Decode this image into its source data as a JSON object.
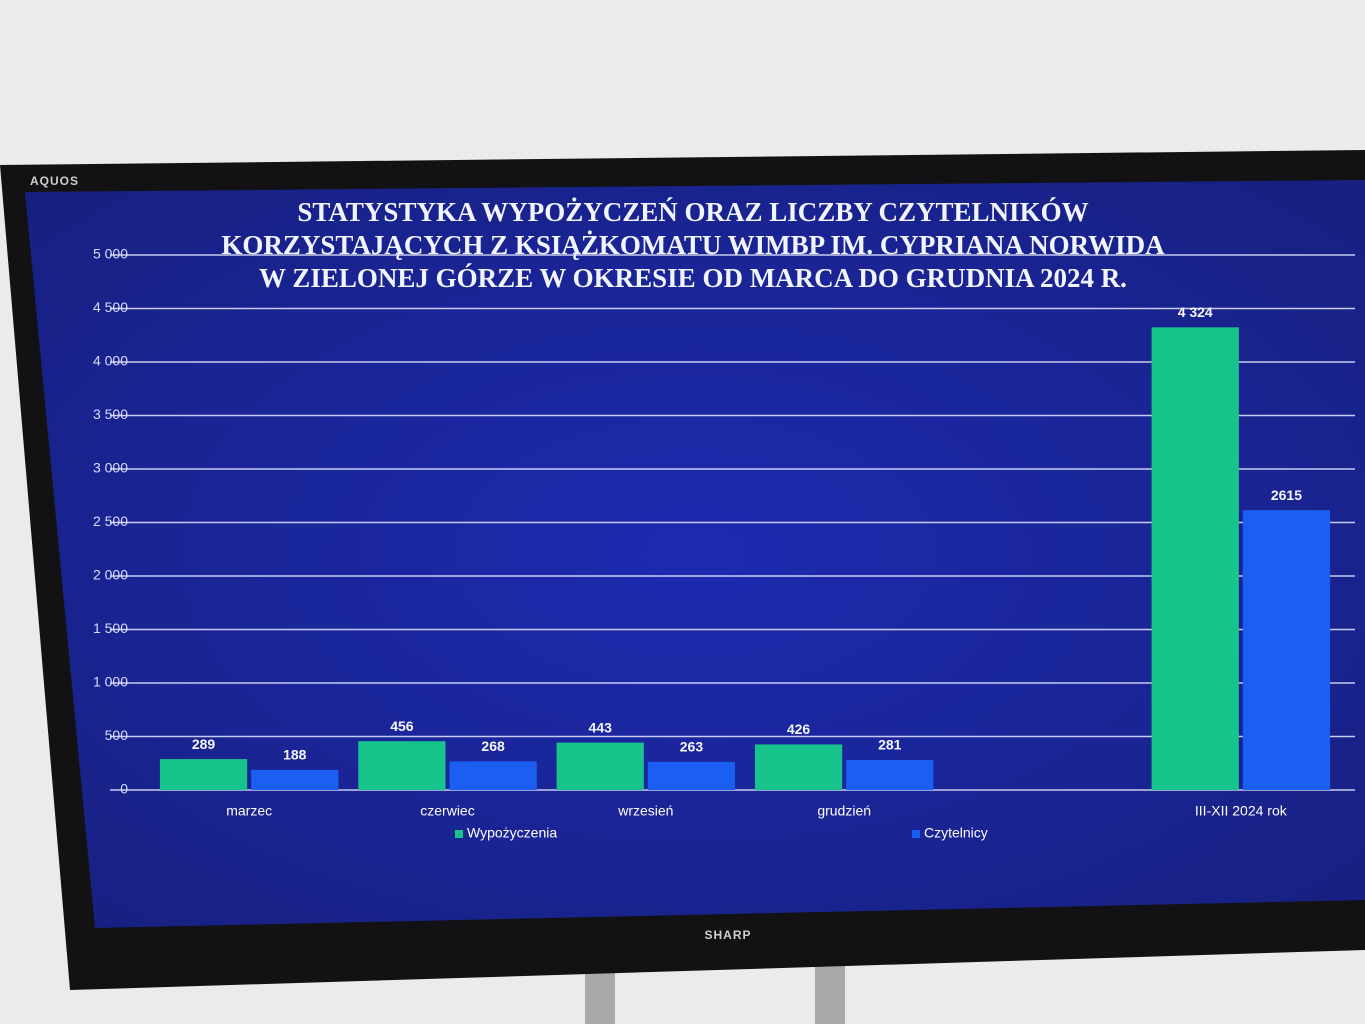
{
  "device": {
    "brand_top": "AQUOS",
    "brand_bottom": "SHARP"
  },
  "chart_data": {
    "type": "bar",
    "title": [
      "STATYSTYKA WYPOŻYCZEŃ ORAZ LICZBY CZYTELNIKÓW",
      "KORZYSTAJĄCYCH Z KSIĄŻKOMATU WIMBP IM. CYPRIANA NORWIDA",
      "W ZIELONEJ GÓRZE W OKRESIE OD MARCA DO GRUDNIA 2024 R."
    ],
    "categories": [
      "marzec",
      "czerwiec",
      "wrzesień",
      "grudzień",
      null,
      "III-XII 2024 rok"
    ],
    "series": [
      {
        "name": "Wypożyczenia",
        "color": "#17c48c",
        "values": [
          289,
          456,
          443,
          426,
          null,
          4324
        ],
        "value_labels": [
          "289",
          "456",
          "443",
          "426",
          null,
          "4 324"
        ]
      },
      {
        "name": "Czytelnicy",
        "color": "#1a5ff2",
        "values": [
          188,
          268,
          263,
          281,
          null,
          2615
        ]
      }
    ],
    "ylim": [
      0,
      5000
    ],
    "yticks": [
      0,
      500,
      {
        "value": 1000,
        "label": "1 000"
      },
      {
        "value": 1500,
        "label": "1 500"
      },
      {
        "value": 2000,
        "label": "2 000"
      },
      {
        "value": 2500,
        "label": "2 500"
      },
      {
        "value": 3000,
        "label": "3 000"
      },
      {
        "value": 3500,
        "label": "3 500"
      },
      {
        "value": 4000,
        "label": "4 000"
      },
      {
        "value": 4500,
        "label": "4 500"
      },
      {
        "value": 5000,
        "label": "5 000"
      }
    ],
    "grid": true,
    "legend": "bottom"
  }
}
